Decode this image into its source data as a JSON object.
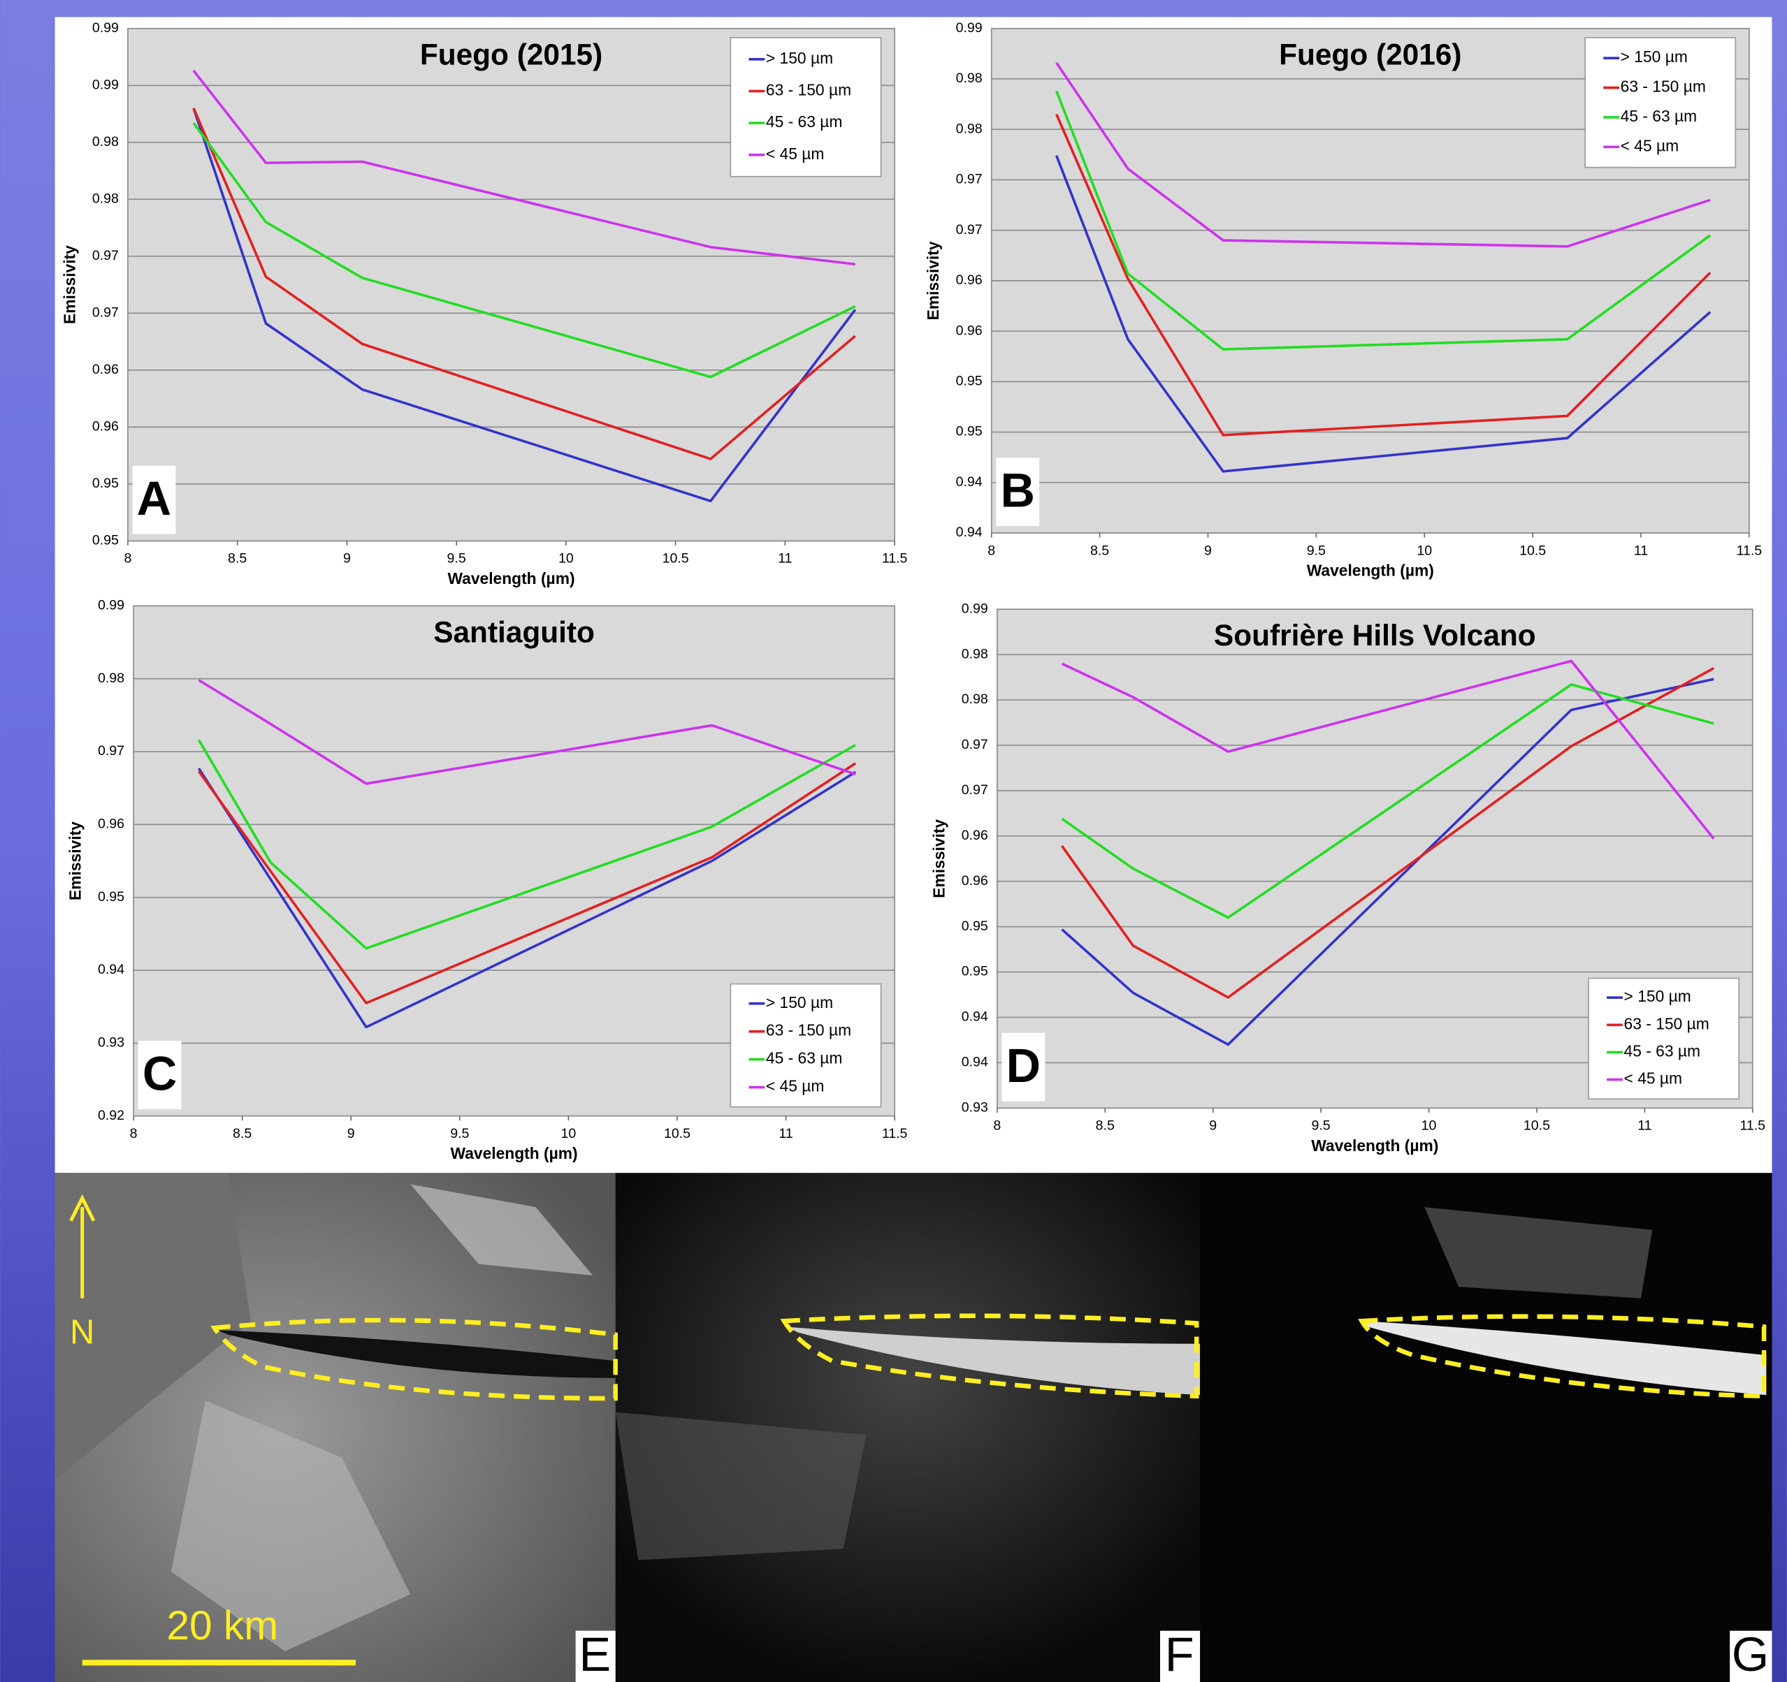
{
  "chart_data": [
    {
      "type": "line",
      "title": "Fuego (2015)",
      "panel_label": "A",
      "xlabel": "Wavelength (µm)",
      "ylabel": "Emissivity",
      "x": [
        8.3,
        8.63,
        9.07,
        10.66,
        11.32
      ],
      "xlim": [
        8,
        11.5
      ],
      "xticks": [
        8,
        8.5,
        9,
        9.5,
        10,
        10.5,
        11,
        11.5
      ],
      "ylim": [
        0.95,
        0.995
      ],
      "yticks": [
        {
          "value": 0.95,
          "label": "0.95"
        },
        {
          "value": 0.955,
          "label": "0.95"
        },
        {
          "value": 0.96,
          "label": "0.96"
        },
        {
          "value": 0.965,
          "label": "0.96"
        },
        {
          "value": 0.97,
          "label": "0.97"
        },
        {
          "value": 0.975,
          "label": "0.97"
        },
        {
          "value": 0.98,
          "label": "0.98"
        },
        {
          "value": 0.985,
          "label": "0.98"
        },
        {
          "value": 0.99,
          "label": "0.99"
        },
        {
          "value": 0.995,
          "label": "0.99"
        }
      ],
      "grid": true,
      "legend": "upper right",
      "series": [
        {
          "name": "> 150 µm",
          "color": "#3333cc",
          "values": [
            0.988,
            0.9691,
            0.9633,
            0.9535,
            0.9703
          ]
        },
        {
          "name": "63 - 150 µm",
          "color": "#e32020",
          "values": [
            0.988,
            0.9732,
            0.9673,
            0.9572,
            0.968
          ]
        },
        {
          "name": "45 - 63 µm",
          "color": "#22dd22",
          "values": [
            0.9867,
            0.978,
            0.9731,
            0.9644,
            0.9706
          ]
        },
        {
          "name": "< 45 µm",
          "color": "#cc33ee",
          "values": [
            0.9913,
            0.9832,
            0.9833,
            0.9758,
            0.9743
          ]
        }
      ]
    },
    {
      "type": "line",
      "title": "Fuego (2016)",
      "panel_label": "B",
      "xlabel": "Wavelength (µm)",
      "ylabel": "Emissivity",
      "x": [
        8.3,
        8.63,
        9.07,
        10.66,
        11.32
      ],
      "xlim": [
        8,
        11.5
      ],
      "xticks": [
        8,
        8.5,
        9,
        9.5,
        10,
        10.5,
        11,
        11.5
      ],
      "ylim": [
        0.94,
        0.99
      ],
      "yticks": [
        0.94,
        {
          "value": 0.945,
          "label": "0.94"
        },
        0.95,
        {
          "value": 0.955,
          "label": "0.95"
        },
        0.96,
        {
          "value": 0.965,
          "label": "0.96"
        },
        0.97,
        {
          "value": 0.975,
          "label": "0.97"
        },
        0.98,
        {
          "value": 0.985,
          "label": "0.98"
        },
        0.99
      ],
      "grid": true,
      "legend": "upper right",
      "series": [
        {
          "name": "> 150 µm",
          "color": "#3333cc",
          "values": [
            0.9774,
            0.9592,
            0.9461,
            0.9494,
            0.9619
          ]
        },
        {
          "name": "63 - 150 µm",
          "color": "#e32020",
          "values": [
            0.9815,
            0.9652,
            0.9497,
            0.9516,
            0.9658
          ]
        },
        {
          "name": "45 - 63 µm",
          "color": "#22dd22",
          "values": [
            0.9838,
            0.9657,
            0.9582,
            0.9592,
            0.9695
          ]
        },
        {
          "name": "< 45 µm",
          "color": "#cc33ee",
          "values": [
            0.9866,
            0.9761,
            0.969,
            0.9684,
            0.973
          ]
        }
      ]
    },
    {
      "type": "line",
      "title": "Santiaguito",
      "panel_label": "C",
      "xlabel": "Wavelength (µm)",
      "ylabel": "Emissivity",
      "x": [
        8.3,
        8.63,
        9.07,
        10.66,
        11.32
      ],
      "xlim": [
        8,
        11.5
      ],
      "xticks": [
        8,
        8.5,
        9,
        9.5,
        10,
        10.5,
        11,
        11.5
      ],
      "ylim": [
        0.92,
        0.99
      ],
      "yticks": [
        0.92,
        0.93,
        0.94,
        0.95,
        0.96,
        0.97,
        0.98,
        0.99
      ],
      "grid": true,
      "legend": "lower right",
      "series": [
        {
          "name": "> 150 µm",
          "color": "#3333cc",
          "values": [
            0.9677,
            0.9525,
            0.9322,
            0.955,
            0.9672
          ]
        },
        {
          "name": "63 - 150 µm",
          "color": "#e32020",
          "values": [
            0.9673,
            0.9536,
            0.9355,
            0.9555,
            0.9684
          ]
        },
        {
          "name": "45 - 63 µm",
          "color": "#22dd22",
          "values": [
            0.9716,
            0.9548,
            0.943,
            0.9597,
            0.9709
          ]
        },
        {
          "name": "< 45 µm",
          "color": "#cc33ee",
          "values": [
            0.9798,
            0.9738,
            0.9656,
            0.9736,
            0.9669
          ]
        }
      ]
    },
    {
      "type": "line",
      "title": "Soufrière Hills Volcano",
      "panel_label": "D",
      "xlabel": "Wavelength (µm)",
      "ylabel": "Emissivity",
      "x": [
        8.3,
        8.63,
        9.07,
        10.66,
        11.32
      ],
      "xlim": [
        8,
        11.5
      ],
      "xticks": [
        8,
        8.5,
        9,
        9.5,
        10,
        10.5,
        11,
        11.5
      ],
      "ylim": [
        0.935,
        0.99
      ],
      "yticks": [
        {
          "value": 0.935,
          "label": "0.93"
        },
        0.94,
        {
          "value": 0.945,
          "label": "0.94"
        },
        0.95,
        {
          "value": 0.955,
          "label": "0.95"
        },
        0.96,
        {
          "value": 0.965,
          "label": "0.96"
        },
        0.97,
        {
          "value": 0.975,
          "label": "0.97"
        },
        0.98,
        {
          "value": 0.985,
          "label": "0.98"
        },
        0.99
      ],
      "grid": true,
      "legend": "lower right",
      "series": [
        {
          "name": "> 150 µm",
          "color": "#3333cc",
          "values": [
            0.9547,
            0.9477,
            0.942,
            0.9789,
            0.9823
          ]
        },
        {
          "name": "63 - 150 µm",
          "color": "#e32020",
          "values": [
            0.9639,
            0.9529,
            0.9472,
            0.9749,
            0.9835
          ]
        },
        {
          "name": "45 - 63 µm",
          "color": "#22dd22",
          "values": [
            0.9669,
            0.9614,
            0.956,
            0.9817,
            0.9774
          ]
        },
        {
          "name": "< 45 µm",
          "color": "#cc33ee",
          "values": [
            0.984,
            0.9803,
            0.9743,
            0.9843,
            0.9647
          ]
        }
      ]
    }
  ],
  "images": {
    "north_label": "N",
    "scale_bar": "20 km",
    "panels": [
      {
        "label": "E"
      },
      {
        "label": "F"
      },
      {
        "label": "G"
      }
    ]
  }
}
